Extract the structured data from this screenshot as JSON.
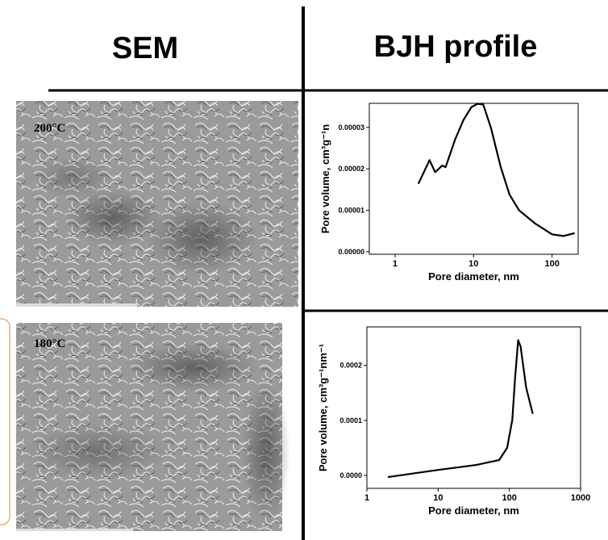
{
  "headers": {
    "left": "SEM",
    "right": "BJH profile"
  },
  "images": [
    {
      "label": "200°C"
    },
    {
      "label": "180°C"
    }
  ],
  "chart_data": [
    {
      "type": "line",
      "xscale": "log",
      "xlabel": "Pore diameter, nm",
      "ylabel": "Pore volume, cm³g⁻¹n",
      "color": "#000000",
      "x": [
        1.98,
        2.75,
        3.24,
        4.0,
        4.4,
        5.8,
        7.4,
        9.4,
        11.3,
        13.3,
        16.7,
        22.2,
        28.7,
        38,
        61,
        100,
        139,
        194
      ],
      "values": [
        1.64e-05,
        2.21e-05,
        1.92e-05,
        2.08e-05,
        2.04e-05,
        2.7e-05,
        3.17e-05,
        3.49e-05,
        3.57e-05,
        3.55e-05,
        2.98e-05,
        2.04e-05,
        1.38e-05,
        1e-05,
        6.8e-06,
        4.2e-06,
        3.8e-06,
        4.5e-06
      ],
      "xlim": [
        0.47,
        215
      ],
      "xticks": [
        1,
        10,
        100
      ],
      "ylim": [
        -6e-07,
        3.58e-05
      ],
      "yticks": [
        {
          "value": 0,
          "label": "0.00000"
        },
        {
          "value": 1e-05,
          "label": "0.00001"
        },
        {
          "value": 2e-05,
          "label": "0.00002"
        },
        {
          "value": 3e-05,
          "label": "0.00003"
        }
      ]
    },
    {
      "type": "line",
      "xscale": "log",
      "xlabel": "Pore diameter, nm",
      "ylabel": "Pore volume, cm³g⁻¹nm⁻¹",
      "color": "#000000",
      "x": [
        1.97,
        10,
        34,
        72,
        93,
        110,
        120,
        133,
        144,
        172,
        213
      ],
      "values": [
        -3e-06,
        1e-05,
        1.9e-05,
        2.8e-05,
        5e-05,
        0.000101,
        0.000175,
        0.000246,
        0.000234,
        0.00016,
        0.000112
      ],
      "xlim": [
        1,
        1000
      ],
      "xticks": [
        1,
        10,
        100,
        1000
      ],
      "ylim": [
        -2.35e-05,
        0.00027
      ],
      "yticks": [
        {
          "value": 0,
          "label": "0.0000"
        },
        {
          "value": 0.0001,
          "label": "0.0001"
        },
        {
          "value": 0.0002,
          "label": "0.0002"
        }
      ]
    }
  ]
}
